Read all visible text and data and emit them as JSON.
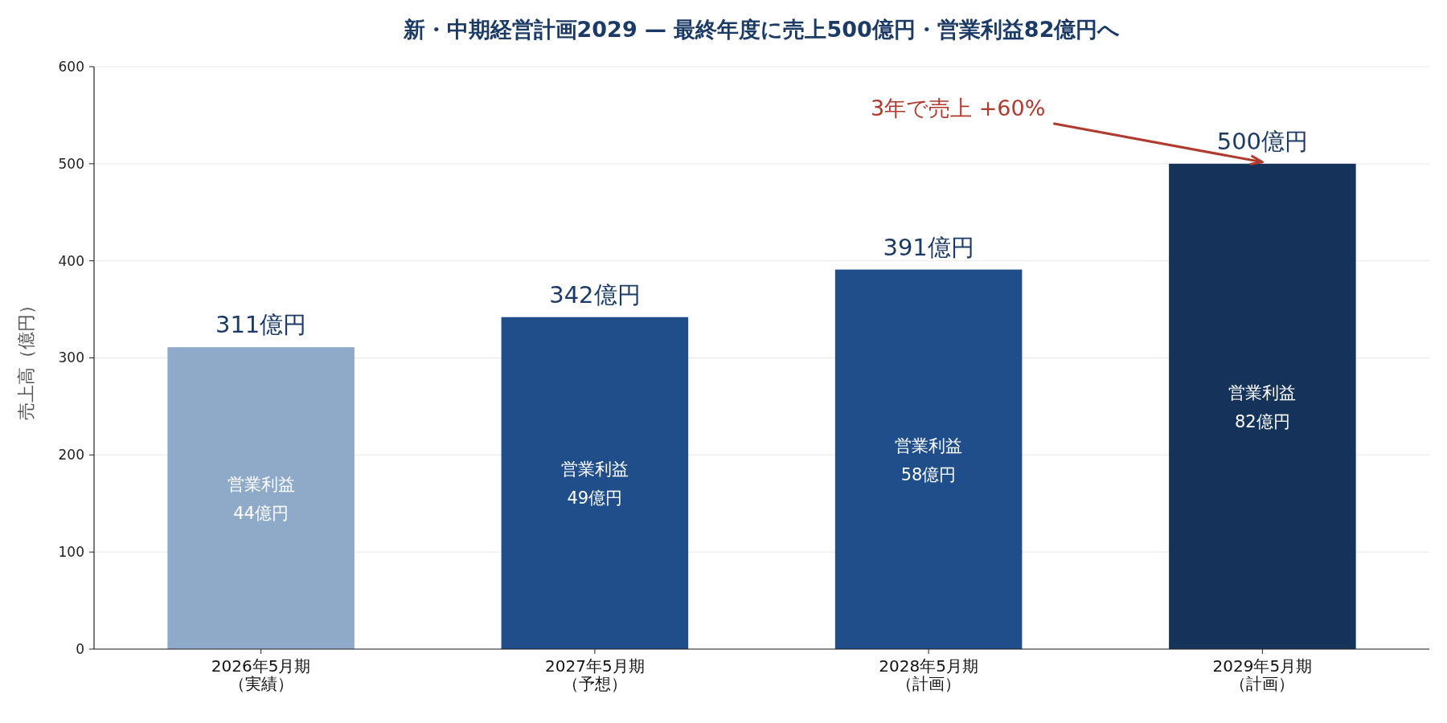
{
  "chart_data": {
    "type": "bar",
    "title": "新・中期経営計画2029 — 最終年度に売上500億円・営業利益82億円へ",
    "ylabel": "売上高（億円）",
    "categories": [
      "2026年5月期（実績）",
      "2027年5月期（予想）",
      "2028年5月期（計画）",
      "2029年5月期（計画）"
    ],
    "values": [
      311,
      342,
      391,
      500
    ],
    "colors": [
      "#8eaac8",
      "#1f4e8a",
      "#1f4e8a",
      "#14325a"
    ],
    "value_labels": [
      "311億円",
      "342億円",
      "391億円",
      "500億円"
    ],
    "ylim": [
      0,
      600
    ],
    "yticks": [
      0,
      100,
      200,
      300,
      400,
      500,
      600
    ],
    "grid": "y",
    "annotations": [
      "営業利益44億円",
      "営業利益49億円",
      "営業利益58億円",
      "営業利益82億円",
      {
        "text": "3年で売上 +60%",
        "x": "2029年5月期（計画）",
        "y": 500
      }
    ]
  }
}
